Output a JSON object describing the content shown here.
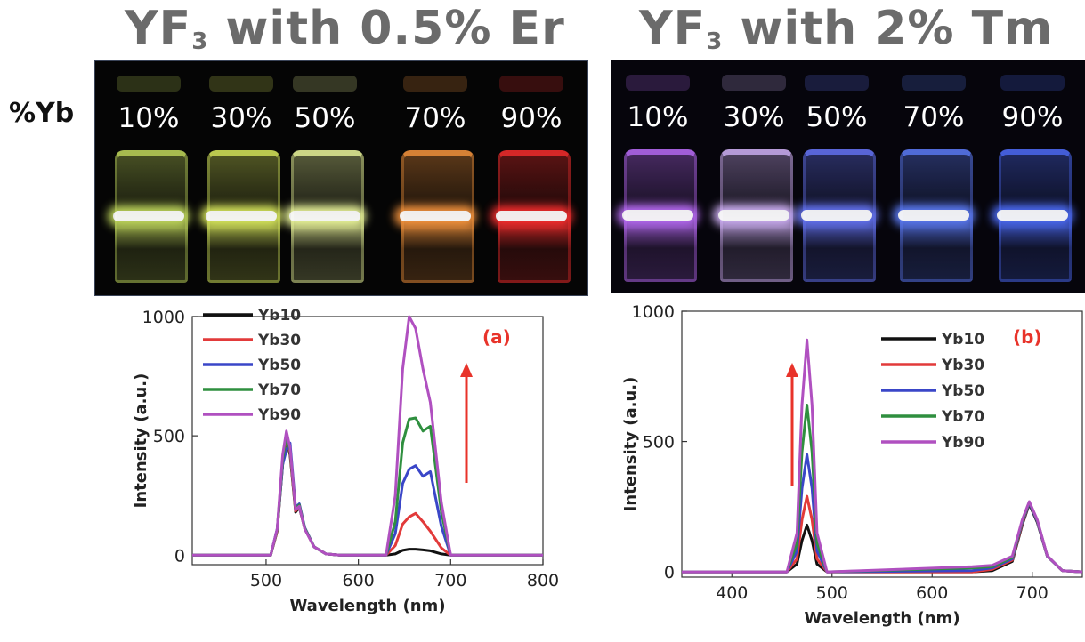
{
  "titles": {
    "er": {
      "main": "YF",
      "sub": "3",
      "rest": " with 0.5% Er"
    },
    "tm": {
      "main": "YF",
      "sub": "3",
      "rest": " with 2% Tm"
    }
  },
  "yb_label": "%Yb",
  "photos": {
    "er": {
      "labels": [
        "10%",
        "30%",
        "50%",
        "70%",
        "90%"
      ],
      "glow_colors": [
        "#c8e060",
        "#e0f060",
        "#f4ffa0",
        "#ff9a40",
        "#ff3030"
      ]
    },
    "tm": {
      "labels": [
        "10%",
        "30%",
        "50%",
        "70%",
        "90%"
      ],
      "glow_colors": [
        "#c070ff",
        "#d8b8ff",
        "#6a7aff",
        "#6080ff",
        "#5070ff"
      ]
    }
  },
  "colors": {
    "Yb10": "#111111",
    "Yb30": "#e23a3a",
    "Yb50": "#3a46c8",
    "Yb70": "#2f8f3f",
    "Yb90": "#b050c0",
    "arrow": "#e8332a",
    "panel_label": "#e8332a"
  },
  "chart_data": [
    {
      "type": "line",
      "panel_label": "(a)",
      "xlabel": "Wavelength (nm)",
      "ylabel": "Intensity (a.u.)",
      "xlim": [
        420,
        800
      ],
      "ylim": [
        -40,
        1000
      ],
      "xticks": [
        500,
        600,
        700,
        800
      ],
      "yticks": [
        0,
        500,
        1000
      ],
      "legend_position": "top-left",
      "arrow": "up",
      "series": [
        {
          "name": "Yb10",
          "x": [
            420,
            505,
            512,
            518,
            522,
            526,
            532,
            536,
            542,
            552,
            565,
            580,
            630,
            640,
            648,
            655,
            662,
            670,
            678,
            690,
            700,
            800
          ],
          "y": [
            0,
            0,
            100,
            380,
            480,
            420,
            180,
            200,
            110,
            35,
            5,
            0,
            0,
            5,
            20,
            25,
            25,
            22,
            18,
            5,
            0,
            0
          ]
        },
        {
          "name": "Yb30",
          "x": [
            420,
            505,
            512,
            518,
            522,
            526,
            532,
            536,
            542,
            552,
            565,
            580,
            630,
            640,
            648,
            655,
            662,
            670,
            678,
            690,
            700,
            800
          ],
          "y": [
            0,
            0,
            100,
            390,
            490,
            430,
            185,
            205,
            110,
            35,
            5,
            0,
            0,
            40,
            130,
            160,
            175,
            140,
            100,
            30,
            0,
            0
          ]
        },
        {
          "name": "Yb50",
          "x": [
            420,
            505,
            512,
            518,
            522,
            526,
            532,
            536,
            542,
            552,
            565,
            580,
            630,
            640,
            648,
            655,
            662,
            670,
            678,
            690,
            700,
            800
          ],
          "y": [
            0,
            0,
            110,
            380,
            440,
            470,
            200,
            215,
            115,
            35,
            5,
            0,
            0,
            90,
            300,
            360,
            375,
            330,
            350,
            120,
            0,
            0
          ]
        },
        {
          "name": "Yb70",
          "x": [
            420,
            505,
            512,
            518,
            522,
            526,
            532,
            536,
            542,
            552,
            565,
            580,
            630,
            640,
            648,
            655,
            662,
            670,
            678,
            690,
            700,
            800
          ],
          "y": [
            0,
            0,
            105,
            400,
            500,
            440,
            195,
            210,
            112,
            35,
            5,
            0,
            0,
            140,
            470,
            570,
            575,
            520,
            540,
            180,
            0,
            0
          ]
        },
        {
          "name": "Yb90",
          "x": [
            420,
            505,
            512,
            518,
            522,
            526,
            532,
            536,
            542,
            552,
            565,
            580,
            630,
            640,
            648,
            655,
            662,
            670,
            678,
            690,
            700,
            800
          ],
          "y": [
            0,
            0,
            110,
            420,
            520,
            450,
            190,
            205,
            108,
            35,
            5,
            0,
            0,
            250,
            780,
            1000,
            950,
            780,
            640,
            220,
            0,
            0
          ]
        }
      ]
    },
    {
      "type": "line",
      "panel_label": "(b)",
      "xlabel": "Wavelength (nm)",
      "ylabel": "Intensity (a.u.)",
      "xlim": [
        350,
        750
      ],
      "ylim": [
        -20,
        1000
      ],
      "xticks": [
        400,
        500,
        600,
        700
      ],
      "yticks": [
        0,
        500,
        1000
      ],
      "legend_position": "top-right",
      "arrow": "up",
      "series": [
        {
          "name": "Yb10",
          "x": [
            350,
            455,
            465,
            470,
            475,
            480,
            485,
            495,
            640,
            660,
            680,
            690,
            697,
            705,
            715,
            730,
            750
          ],
          "y": [
            0,
            0,
            30,
            120,
            180,
            120,
            30,
            0,
            0,
            5,
            40,
            180,
            260,
            190,
            60,
            5,
            0
          ]
        },
        {
          "name": "Yb30",
          "x": [
            350,
            455,
            465,
            470,
            475,
            480,
            485,
            495,
            640,
            660,
            680,
            690,
            697,
            705,
            715,
            730,
            750
          ],
          "y": [
            0,
            0,
            50,
            200,
            290,
            200,
            50,
            0,
            0,
            10,
            45,
            185,
            265,
            195,
            60,
            5,
            0
          ]
        },
        {
          "name": "Yb50",
          "x": [
            350,
            455,
            465,
            470,
            475,
            480,
            485,
            495,
            640,
            660,
            680,
            690,
            697,
            705,
            715,
            730,
            750
          ],
          "y": [
            0,
            0,
            80,
            320,
            450,
            320,
            80,
            0,
            5,
            15,
            50,
            190,
            265,
            195,
            60,
            5,
            0
          ]
        },
        {
          "name": "Yb70",
          "x": [
            350,
            455,
            465,
            470,
            475,
            480,
            485,
            495,
            640,
            660,
            680,
            690,
            697,
            705,
            715,
            730,
            750
          ],
          "y": [
            0,
            0,
            110,
            460,
            640,
            460,
            110,
            0,
            15,
            20,
            55,
            195,
            268,
            198,
            62,
            5,
            0
          ]
        },
        {
          "name": "Yb90",
          "x": [
            350,
            455,
            465,
            470,
            475,
            480,
            485,
            495,
            640,
            660,
            680,
            690,
            697,
            705,
            715,
            730,
            750
          ],
          "y": [
            0,
            0,
            150,
            640,
            890,
            640,
            150,
            0,
            20,
            25,
            60,
            200,
            270,
            200,
            62,
            5,
            0
          ]
        }
      ]
    }
  ]
}
